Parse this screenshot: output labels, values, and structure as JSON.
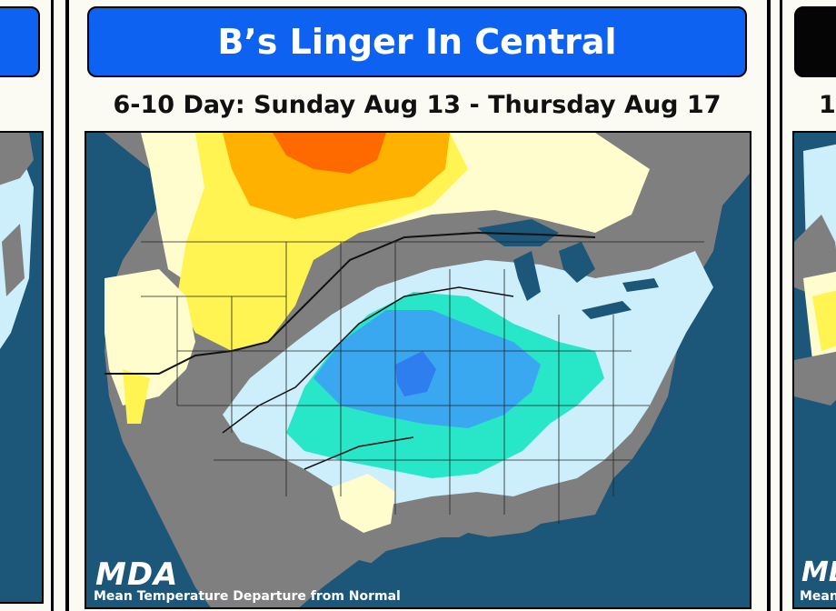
{
  "main_panel": {
    "title": "B’s Linger In Central",
    "subtitle": "6-10 Day: Sunday Aug 13 - Thursday Aug 17",
    "logo": "MDA",
    "caption": "Mean Temperature Departure from Normal",
    "title_color": "#0d62f2"
  },
  "right_panel": {
    "subtitle_fragment": "1",
    "logo_fragment": "MD",
    "caption_fragment": "Mean",
    "title_color": "#050505"
  },
  "left_panel": {
    "title_color": "#0d62f2"
  },
  "map_colors": {
    "ocean": "#1c5679",
    "near_normal": "#7f7f7f",
    "cool_light": "#cdeefb",
    "cool_aqua": "#28e6c8",
    "cool_blue": "#3aa8f0",
    "cool_dark": "#2f7ef0",
    "warm_pale": "#fffccd",
    "warm_yellow": "#fff451",
    "warm_gold": "#ffb100",
    "warm_orange": "#ff6a00"
  }
}
